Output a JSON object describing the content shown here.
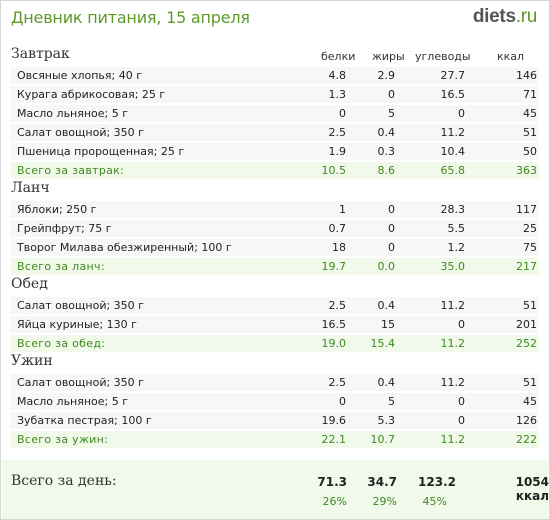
{
  "header": {
    "title": "Дневник питания, 15 апреля",
    "logo_main": "diets",
    "logo_tld": ".ru"
  },
  "columns": [
    "белки",
    "жиры",
    "углеводы",
    "ккал"
  ],
  "meals": [
    {
      "title": "Завтрак",
      "items": [
        {
          "name": "Овсяные хлопья; 40 г",
          "protein": "4.8",
          "fat": "2.9",
          "carbs": "27.7",
          "kcal": "146"
        },
        {
          "name": "Курага абрикосовая; 25 г",
          "protein": "1.3",
          "fat": "0",
          "carbs": "16.5",
          "kcal": "71"
        },
        {
          "name": "Масло льняное; 5 г",
          "protein": "0",
          "fat": "5",
          "carbs": "0",
          "kcal": "45"
        },
        {
          "name": "Салат овощной; 350 г",
          "protein": "2.5",
          "fat": "0.4",
          "carbs": "11.2",
          "kcal": "51"
        },
        {
          "name": "Пшеница пророщенная; 25 г",
          "protein": "1.9",
          "fat": "0.3",
          "carbs": "10.4",
          "kcal": "50"
        }
      ],
      "total": {
        "name": "Всего за завтрак:",
        "protein": "10.5",
        "fat": "8.6",
        "carbs": "65.8",
        "kcal": "363"
      }
    },
    {
      "title": "Ланч",
      "items": [
        {
          "name": "Яблоки; 250 г",
          "protein": "1",
          "fat": "0",
          "carbs": "28.3",
          "kcal": "117"
        },
        {
          "name": "Грейпфрут; 75 г",
          "protein": "0.7",
          "fat": "0",
          "carbs": "5.5",
          "kcal": "25"
        },
        {
          "name": "Творог Милава обезжиренный; 100 г",
          "protein": "18",
          "fat": "0",
          "carbs": "1.2",
          "kcal": "75"
        }
      ],
      "total": {
        "name": "Всего за ланч:",
        "protein": "19.7",
        "fat": "0.0",
        "carbs": "35.0",
        "kcal": "217"
      }
    },
    {
      "title": "Обед",
      "items": [
        {
          "name": "Салат овощной; 350 г",
          "protein": "2.5",
          "fat": "0.4",
          "carbs": "11.2",
          "kcal": "51"
        },
        {
          "name": "Яйца куриные; 130 г",
          "protein": "16.5",
          "fat": "15",
          "carbs": "0",
          "kcal": "201"
        }
      ],
      "total": {
        "name": "Всего за обед:",
        "protein": "19.0",
        "fat": "15.4",
        "carbs": "11.2",
        "kcal": "252"
      }
    },
    {
      "title": "Ужин",
      "items": [
        {
          "name": "Салат овощной; 350 г",
          "protein": "2.5",
          "fat": "0.4",
          "carbs": "11.2",
          "kcal": "51"
        },
        {
          "name": "Масло льняное; 5 г",
          "protein": "0",
          "fat": "5",
          "carbs": "0",
          "kcal": "45"
        },
        {
          "name": "Зубатка пестрая; 100 г",
          "protein": "19.6",
          "fat": "5.3",
          "carbs": "0",
          "kcal": "126"
        }
      ],
      "total": {
        "name": "Всего за ужин:",
        "protein": "22.1",
        "fat": "10.7",
        "carbs": "11.2",
        "kcal": "222"
      }
    }
  ],
  "day_total": {
    "label": "Всего за день:",
    "protein": "71.3",
    "fat": "34.7",
    "carbs": "123.2",
    "kcal": "1054 ккал",
    "protein_pct": "26%",
    "fat_pct": "29%",
    "carbs_pct": "45%"
  }
}
